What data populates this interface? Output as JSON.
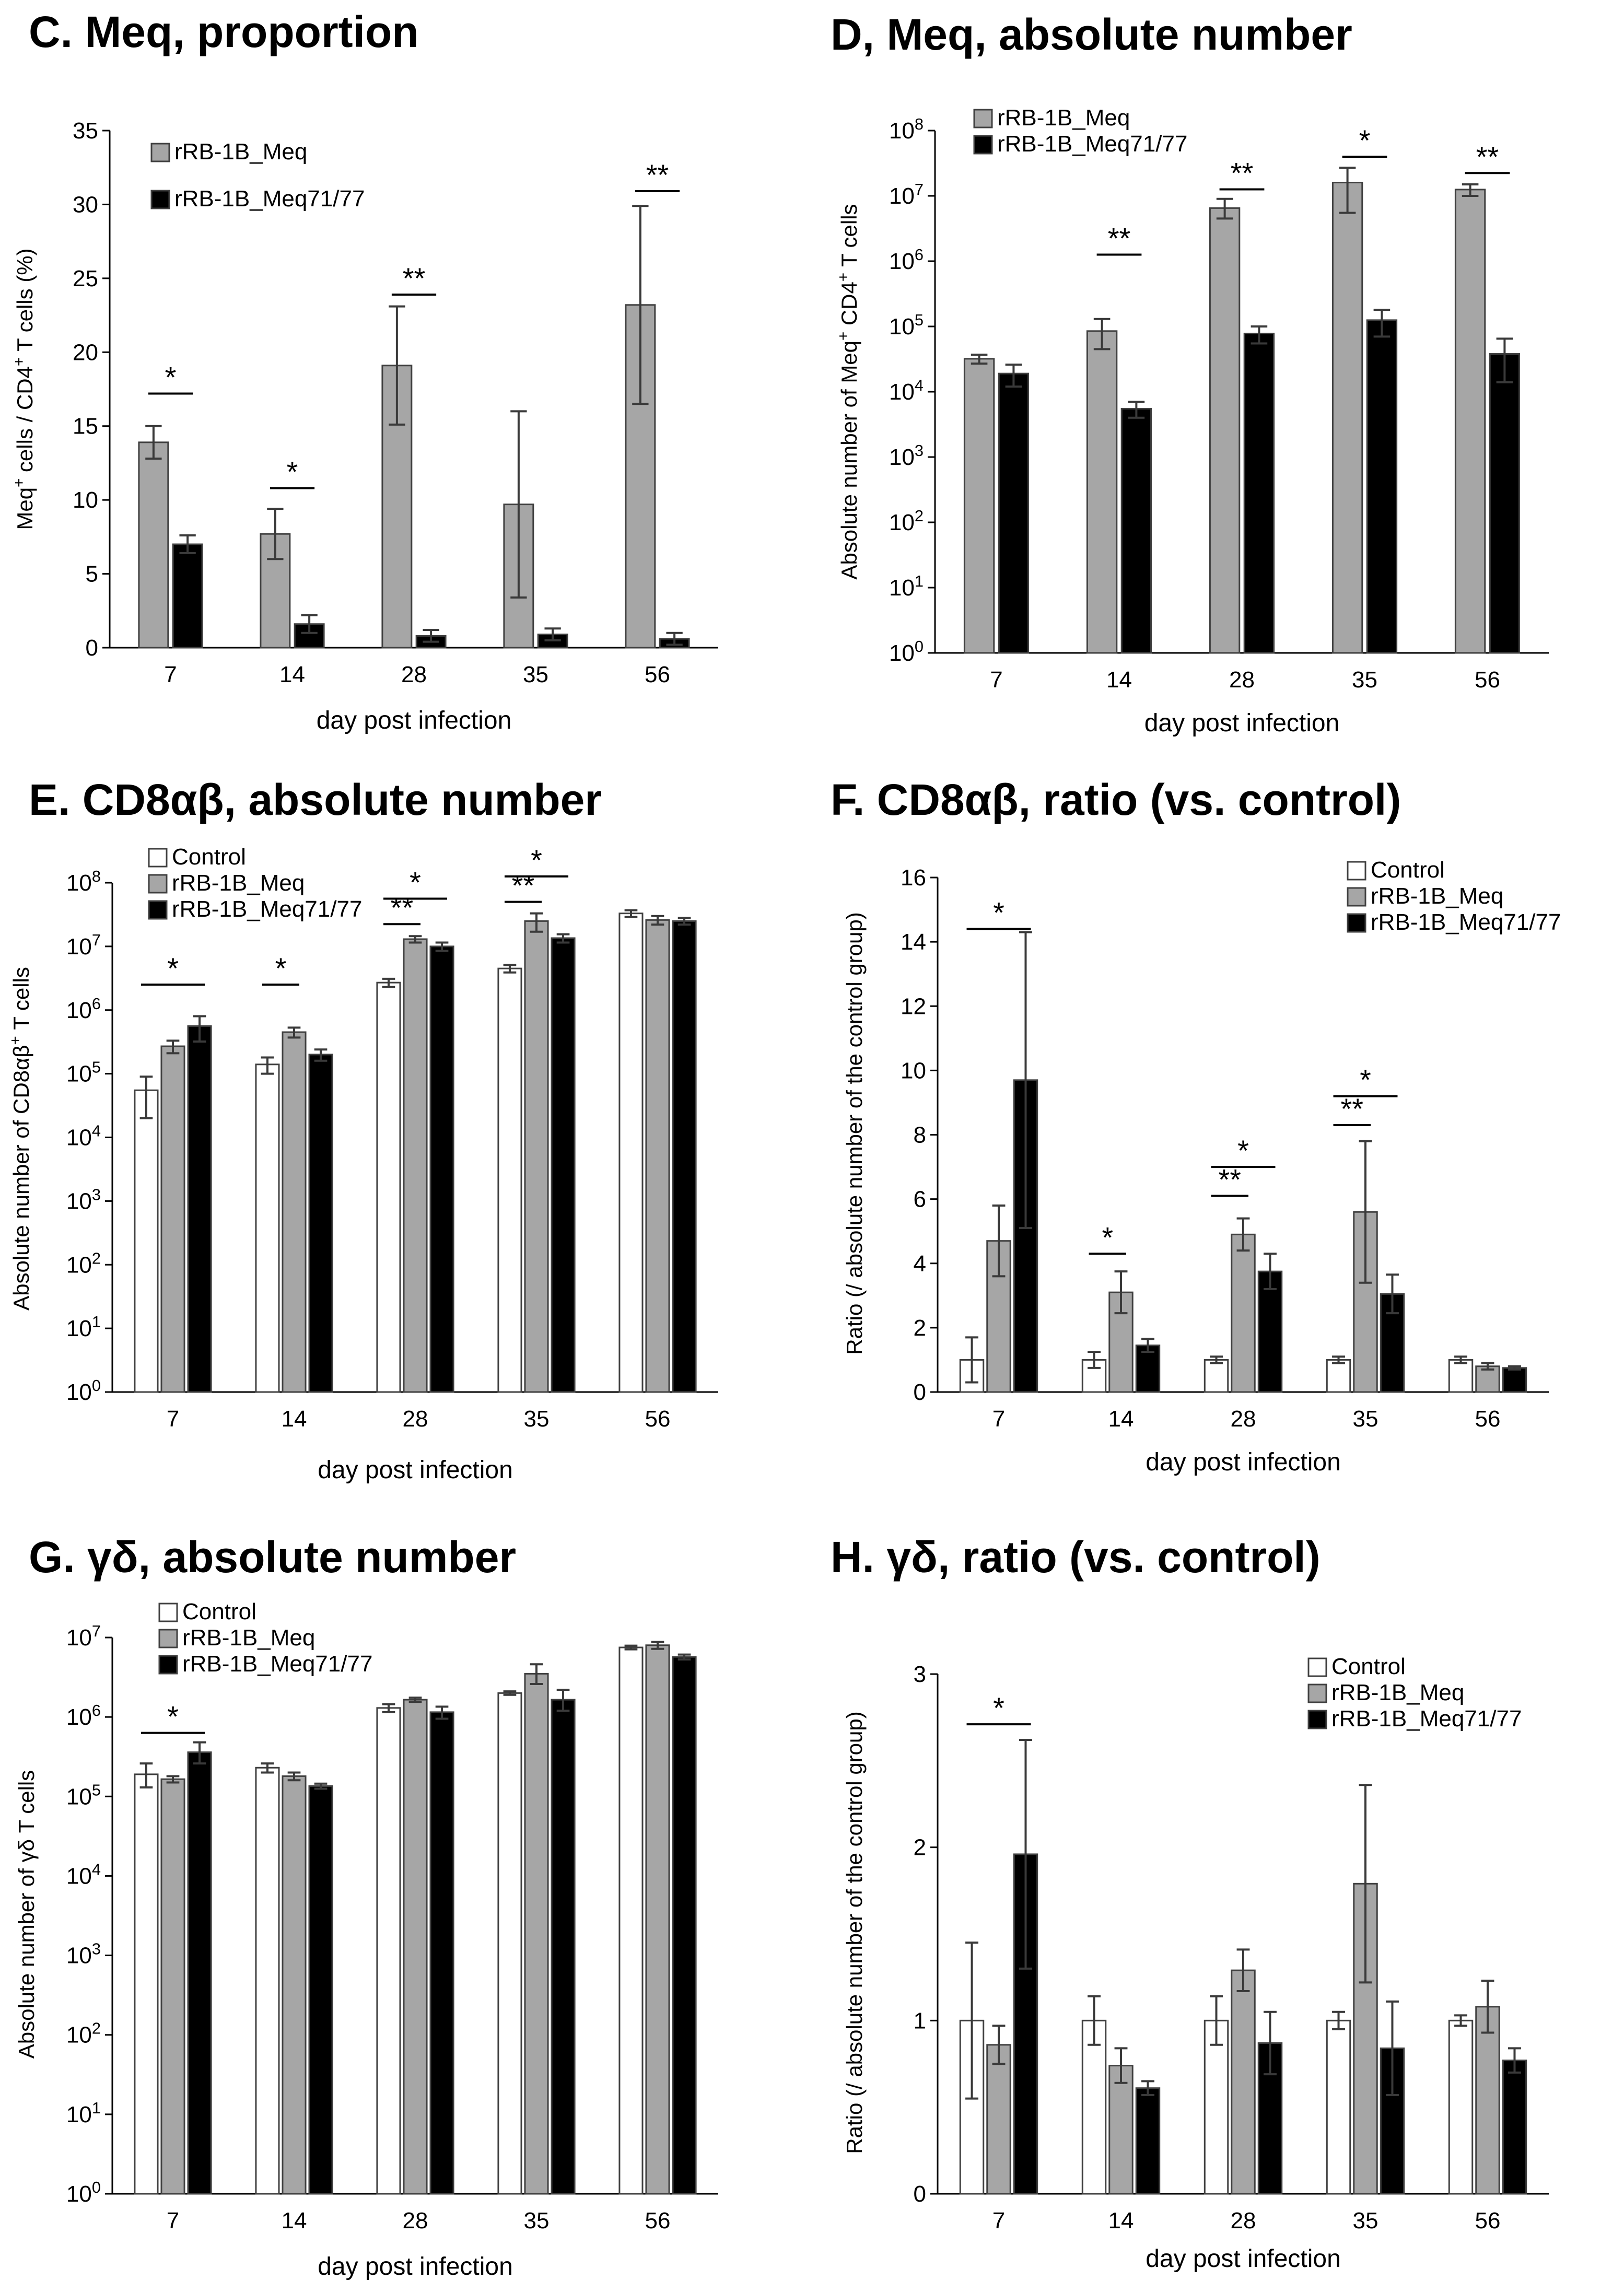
{
  "colors": {
    "Control": "#ffffff",
    "rRB-1B_Meq": "#a6a6a6",
    "rRB-1B_Meq71/77": "#000000",
    "bar_outline": "#404040"
  },
  "chart_data": [
    {
      "id": "C",
      "type": "bar",
      "scale": "linear",
      "title": "C. Meq, proportion",
      "xlabel": "day post infection",
      "ylabel": "Meq<sup>+</sup> cells / CD4<sup>+</sup> T cells (%)",
      "ylim": [
        0,
        35
      ],
      "yticks": [
        0,
        5,
        10,
        15,
        20,
        25,
        30,
        35
      ],
      "categories": [
        "7",
        "14",
        "28",
        "35",
        "56"
      ],
      "legend_pos": "top-left",
      "series": [
        {
          "name": "rRB-1B_Meq",
          "values": [
            13.9,
            7.7,
            19.1,
            9.7,
            23.2
          ],
          "err": [
            1.1,
            1.7,
            4.0,
            6.3,
            6.7
          ]
        },
        {
          "name": "rRB-1B_Meq71/77",
          "values": [
            7.0,
            1.6,
            0.8,
            0.9,
            0.6
          ],
          "err": [
            0.6,
            0.6,
            0.4,
            0.4,
            0.4
          ]
        }
      ],
      "significance": [
        {
          "cat": 0,
          "from": 0,
          "to": 1,
          "label": "*",
          "y": 17.2
        },
        {
          "cat": 1,
          "from": 0,
          "to": 1,
          "label": "*",
          "y": 10.8
        },
        {
          "cat": 2,
          "from": 0,
          "to": 1,
          "label": "**",
          "y": 23.9
        },
        {
          "cat": 4,
          "from": 0,
          "to": 1,
          "label": "**",
          "y": 30.9
        }
      ]
    },
    {
      "id": "D",
      "type": "bar",
      "scale": "log",
      "title": "D, Meq, absolute number",
      "xlabel": "day post infection",
      "ylabel": "Absolute number of Meq<sup>+</sup> CD4<sup>+</sup> T cells",
      "ylim": [
        0,
        8
      ],
      "yticks": [
        0,
        1,
        2,
        3,
        4,
        5,
        6,
        7,
        8
      ],
      "categories": [
        "7",
        "14",
        "28",
        "35",
        "56"
      ],
      "legend_pos": "top-left",
      "series": [
        {
          "name": "rRB-1B_Meq",
          "values": [
            32000,
            85000,
            6500000,
            16000000,
            12500000
          ],
          "lo": [
            27000,
            45000,
            4500000,
            5500000,
            10000000
          ],
          "hi": [
            37000,
            130000,
            9000000,
            27000000,
            15000000
          ]
        },
        {
          "name": "rRB-1B_Meq71/77",
          "values": [
            19000,
            5500,
            78000,
            125000,
            38000
          ],
          "lo": [
            12000,
            4000,
            55000,
            70000,
            14000
          ],
          "hi": [
            26000,
            7000,
            100000,
            180000,
            65000
          ]
        }
      ],
      "significance": [
        {
          "cat": 1,
          "from": 0,
          "to": 1,
          "label": "**",
          "y": 6.1
        },
        {
          "cat": 2,
          "from": 0,
          "to": 1,
          "label": "**",
          "y": 7.1
        },
        {
          "cat": 3,
          "from": 0,
          "to": 1,
          "label": "*",
          "y": 7.6
        },
        {
          "cat": 4,
          "from": 0,
          "to": 1,
          "label": "**",
          "y": 7.35
        }
      ]
    },
    {
      "id": "E",
      "type": "bar",
      "scale": "log",
      "title": "E. CD8αβ, absolute number",
      "xlabel": "day post infection",
      "ylabel": "Absolute number of CD8αβ<sup>+</sup> T cells",
      "ylim": [
        0,
        8
      ],
      "yticks": [
        0,
        1,
        2,
        3,
        4,
        5,
        6,
        7,
        8
      ],
      "categories": [
        "7",
        "14",
        "28",
        "35",
        "56"
      ],
      "legend_pos": "top-left",
      "series": [
        {
          "name": "Control",
          "values": [
            55000,
            140000,
            2700000,
            4500000,
            33000000
          ],
          "lo": [
            20000,
            100000,
            2300000,
            3900000,
            29000000
          ],
          "hi": [
            90000,
            180000,
            3100000,
            5100000,
            37000000
          ]
        },
        {
          "name": "rRB-1B_Meq",
          "values": [
            270000,
            450000,
            13000000,
            25000000,
            26000000
          ],
          "lo": [
            210000,
            370000,
            11500000,
            17000000,
            22000000
          ],
          "hi": [
            330000,
            530000,
            14500000,
            33000000,
            30000000
          ]
        },
        {
          "name": "rRB-1B_Meq71/77",
          "values": [
            560000,
            200000,
            10000000,
            13500000,
            25000000
          ],
          "lo": [
            320000,
            160000,
            8500000,
            11500000,
            22000000
          ],
          "hi": [
            800000,
            240000,
            11500000,
            15500000,
            28000000
          ]
        }
      ],
      "significance": [
        {
          "cat": 0,
          "from": 0,
          "to": 2,
          "label": "*",
          "y": 6.4
        },
        {
          "cat": 1,
          "from": 0,
          "to": 1,
          "label": "*",
          "y": 6.4
        },
        {
          "cat": 2,
          "from": 0,
          "to": 1,
          "label": "**",
          "y": 7.35
        },
        {
          "cat": 2,
          "from": 0,
          "to": 2,
          "label": "*",
          "y": 7.75
        },
        {
          "cat": 3,
          "from": 0,
          "to": 1,
          "label": "**",
          "y": 7.7
        },
        {
          "cat": 3,
          "from": 0,
          "to": 2,
          "label": "*",
          "y": 8.1
        }
      ]
    },
    {
      "id": "F",
      "type": "bar",
      "scale": "linear",
      "title": "F. CD8αβ, ratio (vs. control)",
      "xlabel": "day post infection",
      "ylabel": "Ratio (/ absolute number of the control group)",
      "ylim": [
        0,
        16
      ],
      "yticks": [
        0,
        2,
        4,
        6,
        8,
        10,
        12,
        14,
        16
      ],
      "categories": [
        "7",
        "14",
        "28",
        "35",
        "56"
      ],
      "legend_pos": "top-right",
      "series": [
        {
          "name": "Control",
          "values": [
            1.0,
            1.0,
            1.0,
            1.0,
            1.0
          ],
          "err": [
            0.7,
            0.25,
            0.1,
            0.1,
            0.1
          ]
        },
        {
          "name": "rRB-1B_Meq",
          "values": [
            4.7,
            3.1,
            4.9,
            5.6,
            0.8
          ],
          "err": [
            1.1,
            0.65,
            0.5,
            2.2,
            0.1
          ]
        },
        {
          "name": "rRB-1B_Meq71/77",
          "values": [
            9.7,
            1.45,
            3.75,
            3.05,
            0.75
          ],
          "err": [
            4.6,
            0.2,
            0.55,
            0.6,
            0.05
          ]
        }
      ],
      "significance": [
        {
          "cat": 0,
          "from": 0,
          "to": 2,
          "label": "*",
          "y": 14.4
        },
        {
          "cat": 1,
          "from": 0,
          "to": 1,
          "label": "*",
          "y": 4.3
        },
        {
          "cat": 2,
          "from": 0,
          "to": 1,
          "label": "**",
          "y": 6.1
        },
        {
          "cat": 2,
          "from": 0,
          "to": 2,
          "label": "*",
          "y": 7.0
        },
        {
          "cat": 3,
          "from": 0,
          "to": 1,
          "label": "**",
          "y": 8.3
        },
        {
          "cat": 3,
          "from": 0,
          "to": 2,
          "label": "*",
          "y": 9.2
        }
      ]
    },
    {
      "id": "G",
      "type": "bar",
      "scale": "log",
      "title": "G. γδ, absolute number",
      "xlabel": "day post infection",
      "ylabel": "Absolute number of γδ T cells",
      "ylim": [
        0,
        7
      ],
      "yticks": [
        0,
        1,
        2,
        3,
        4,
        5,
        6,
        7
      ],
      "categories": [
        "7",
        "14",
        "28",
        "35",
        "56"
      ],
      "legend_pos": "top-left",
      "series": [
        {
          "name": "Control",
          "values": [
            190000,
            230000,
            1300000,
            2000000,
            7500000
          ],
          "lo": [
            130000,
            200000,
            1150000,
            1900000,
            7100000
          ],
          "hi": [
            260000,
            260000,
            1450000,
            2100000,
            7900000
          ]
        },
        {
          "name": "rRB-1B_Meq",
          "values": [
            165000,
            180000,
            1650000,
            3500000,
            8000000
          ],
          "lo": [
            150000,
            160000,
            1550000,
            2600000,
            7200000
          ],
          "hi": [
            180000,
            200000,
            1750000,
            4600000,
            8800000
          ]
        },
        {
          "name": "rRB-1B_Meq71/77",
          "values": [
            360000,
            135000,
            1150000,
            1650000,
            5700000
          ],
          "lo": [
            260000,
            125000,
            950000,
            1200000,
            5300000
          ],
          "hi": [
            480000,
            145000,
            1350000,
            2200000,
            6100000
          ]
        }
      ],
      "significance": [
        {
          "cat": 0,
          "from": 0,
          "to": 2,
          "label": "*",
          "y": 5.8
        }
      ]
    },
    {
      "id": "H",
      "type": "bar",
      "scale": "linear",
      "title": "H. γδ, ratio (vs. control)",
      "xlabel": "day post infection",
      "ylabel": "Ratio (/ absolute number of the control group)",
      "ylim": [
        0,
        3
      ],
      "yticks": [
        0,
        1,
        2,
        3
      ],
      "categories": [
        "7",
        "14",
        "28",
        "35",
        "56"
      ],
      "legend_pos": "top-right",
      "series": [
        {
          "name": "Control",
          "values": [
            1.0,
            1.0,
            1.0,
            1.0,
            1.0
          ],
          "err": [
            0.45,
            0.14,
            0.14,
            0.05,
            0.03
          ]
        },
        {
          "name": "rRB-1B_Meq",
          "values": [
            0.86,
            0.74,
            1.29,
            1.79,
            1.08
          ],
          "err": [
            0.11,
            0.1,
            0.12,
            0.57,
            0.15
          ]
        },
        {
          "name": "rRB-1B_Meq71/77",
          "values": [
            1.96,
            0.61,
            0.87,
            0.84,
            0.77
          ],
          "err": [
            0.66,
            0.04,
            0.18,
            0.27,
            0.07
          ]
        }
      ],
      "significance": [
        {
          "cat": 0,
          "from": 0,
          "to": 2,
          "label": "*",
          "y": 2.71
        }
      ]
    }
  ]
}
